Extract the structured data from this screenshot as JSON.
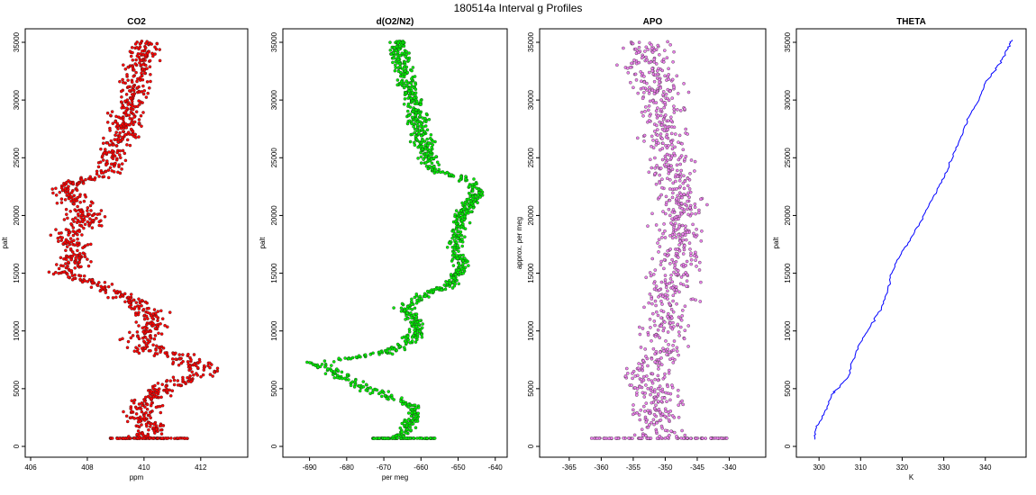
{
  "figure": {
    "title": "180514a   Interval g Profiles"
  },
  "colors": {
    "co2": "#ff0000",
    "o2n2": "#00ee00",
    "apo": "#ee82ee",
    "theta": "#0000ff",
    "outline": "#222222"
  },
  "chart_data": [
    {
      "id": "co2",
      "type": "scatter",
      "title": "CO2",
      "xlabel": "ppm",
      "ylabel": "palt",
      "xlim": [
        406,
        413.5
      ],
      "ylim": [
        0,
        35000
      ],
      "xticks": [
        406,
        408,
        410,
        412
      ],
      "yticks": [
        0,
        5000,
        10000,
        15000,
        20000,
        25000,
        30000,
        35000
      ],
      "profile": [
        [
          700,
          410.0,
          0.6
        ],
        [
          1500,
          410.3,
          0.5
        ],
        [
          2500,
          409.8,
          0.6
        ],
        [
          3500,
          410.0,
          0.5
        ],
        [
          4500,
          410.4,
          0.5
        ],
        [
          5500,
          411.0,
          0.6
        ],
        [
          6500,
          412.3,
          0.7
        ],
        [
          7500,
          411.4,
          0.8
        ],
        [
          8500,
          410.0,
          0.7
        ],
        [
          9500,
          409.9,
          0.6
        ],
        [
          10500,
          410.3,
          0.5
        ],
        [
          11500,
          410.2,
          0.6
        ],
        [
          12500,
          409.6,
          0.5
        ],
        [
          13200,
          409.1,
          0.5
        ],
        [
          14000,
          408.3,
          0.6
        ],
        [
          15000,
          407.3,
          0.5
        ],
        [
          16000,
          407.6,
          0.5
        ],
        [
          17000,
          407.6,
          0.5
        ],
        [
          18000,
          407.3,
          0.6
        ],
        [
          19000,
          407.8,
          0.6
        ],
        [
          20000,
          408.0,
          0.6
        ],
        [
          21000,
          407.7,
          0.6
        ],
        [
          22000,
          407.1,
          0.6
        ],
        [
          22800,
          407.5,
          0.5
        ],
        [
          23500,
          408.7,
          0.5
        ],
        [
          24500,
          408.9,
          0.5
        ],
        [
          25500,
          408.9,
          0.5
        ],
        [
          26500,
          409.1,
          0.5
        ],
        [
          27500,
          409.3,
          0.5
        ],
        [
          28500,
          409.4,
          0.5
        ],
        [
          29500,
          409.5,
          0.5
        ],
        [
          30500,
          409.6,
          0.5
        ],
        [
          31500,
          409.6,
          0.5
        ],
        [
          32500,
          409.7,
          0.5
        ],
        [
          33500,
          409.9,
          0.5
        ],
        [
          34500,
          410.0,
          0.5
        ],
        [
          35000,
          410.0,
          0.5
        ]
      ],
      "base_range": [
        408.8,
        411.6
      ]
    },
    {
      "id": "o2n2",
      "type": "scatter",
      "title": "d(O2/N2)",
      "xlabel": "per meg",
      "ylabel": "palt",
      "xlim": [
        -695,
        -638
      ],
      "ylim": [
        0,
        35000
      ],
      "xticks": [
        -690,
        -680,
        -670,
        -660,
        -650,
        -640
      ],
      "yticks": [
        0,
        5000,
        10000,
        15000,
        20000,
        25000,
        30000,
        35000
      ],
      "profile": [
        [
          700,
          -666,
          2.5
        ],
        [
          1500,
          -664,
          2.0
        ],
        [
          2500,
          -662,
          2.0
        ],
        [
          3500,
          -662,
          2.0
        ],
        [
          4500,
          -670,
          2.5
        ],
        [
          5500,
          -678,
          3.0
        ],
        [
          6500,
          -683,
          3.0
        ],
        [
          7200,
          -689,
          3.0
        ],
        [
          8000,
          -672,
          3.0
        ],
        [
          9000,
          -663,
          2.5
        ],
        [
          10000,
          -661,
          2.0
        ],
        [
          11000,
          -662,
          2.0
        ],
        [
          12000,
          -664,
          2.5
        ],
        [
          13000,
          -660,
          2.5
        ],
        [
          14000,
          -652,
          2.0
        ],
        [
          15000,
          -650,
          2.0
        ],
        [
          16000,
          -649,
          2.0
        ],
        [
          17000,
          -651,
          2.0
        ],
        [
          18000,
          -650,
          2.0
        ],
        [
          19000,
          -650,
          2.0
        ],
        [
          20000,
          -649,
          2.0
        ],
        [
          21000,
          -647,
          2.0
        ],
        [
          22000,
          -645,
          2.5
        ],
        [
          23000,
          -647,
          2.5
        ],
        [
          24000,
          -657,
          2.5
        ],
        [
          25000,
          -658,
          2.5
        ],
        [
          26000,
          -659,
          2.5
        ],
        [
          27000,
          -660,
          2.5
        ],
        [
          28000,
          -661,
          2.5
        ],
        [
          29000,
          -661,
          2.5
        ],
        [
          30000,
          -662,
          2.5
        ],
        [
          31000,
          -664,
          2.5
        ],
        [
          32000,
          -664,
          2.5
        ],
        [
          33000,
          -665,
          2.5
        ],
        [
          34000,
          -666,
          2.5
        ],
        [
          35000,
          -666,
          2.5
        ]
      ],
      "base_range": [
        -673,
        -656
      ]
    },
    {
      "id": "apo",
      "type": "scatter",
      "title": "APO",
      "xlabel": "",
      "ylabel": "approx. per meg",
      "xlim": [
        -368.5,
        -335
      ],
      "ylim": [
        0,
        35000
      ],
      "xticks": [
        -365,
        -360,
        -355,
        -350,
        -345,
        -340
      ],
      "yticks": [
        0,
        5000,
        10000,
        15000,
        20000,
        25000,
        30000,
        35000
      ],
      "profile": [
        [
          700,
          -351,
          4.0
        ],
        [
          3000,
          -351,
          3.5
        ],
        [
          6000,
          -353,
          3.5
        ],
        [
          9000,
          -350,
          3.5
        ],
        [
          12000,
          -350,
          3.5
        ],
        [
          15000,
          -348,
          3.5
        ],
        [
          18000,
          -348,
          3.5
        ],
        [
          21000,
          -347,
          3.5
        ],
        [
          24000,
          -349,
          3.5
        ],
        [
          27000,
          -350,
          3.5
        ],
        [
          30000,
          -351,
          3.5
        ],
        [
          33000,
          -352,
          3.5
        ],
        [
          35000,
          -353,
          3.5
        ]
      ],
      "base_range": [
        -362,
        -340
      ]
    },
    {
      "id": "theta",
      "type": "line",
      "title": "THETA",
      "xlabel": "K",
      "ylabel": "palt",
      "xlim": [
        296.5,
        348.5
      ],
      "ylim": [
        0,
        35000
      ],
      "xticks": [
        300,
        310,
        320,
        330,
        340
      ],
      "yticks": [
        0,
        5000,
        10000,
        15000,
        20000,
        25000,
        30000,
        35000
      ],
      "profile": [
        [
          600,
          299.0
        ],
        [
          1500,
          299.2
        ],
        [
          2500,
          300.8
        ],
        [
          3500,
          302.0
        ],
        [
          4500,
          303.0
        ],
        [
          5000,
          304.5
        ],
        [
          6000,
          307.0
        ],
        [
          7500,
          308.2
        ],
        [
          9000,
          310.0
        ],
        [
          10500,
          312.5
        ],
        [
          12000,
          315.0
        ],
        [
          13500,
          316.5
        ],
        [
          15000,
          317.5
        ],
        [
          16500,
          319.5
        ],
        [
          18000,
          322.0
        ],
        [
          19500,
          324.5
        ],
        [
          21000,
          326.5
        ],
        [
          22500,
          328.8
        ],
        [
          24000,
          331.0
        ],
        [
          25500,
          332.5
        ],
        [
          27000,
          334.5
        ],
        [
          28500,
          336.0
        ],
        [
          30000,
          338.5
        ],
        [
          31500,
          340.0
        ],
        [
          32500,
          342.2
        ],
        [
          33500,
          344.0
        ],
        [
          34500,
          345.5
        ],
        [
          35200,
          346.5
        ]
      ]
    }
  ]
}
